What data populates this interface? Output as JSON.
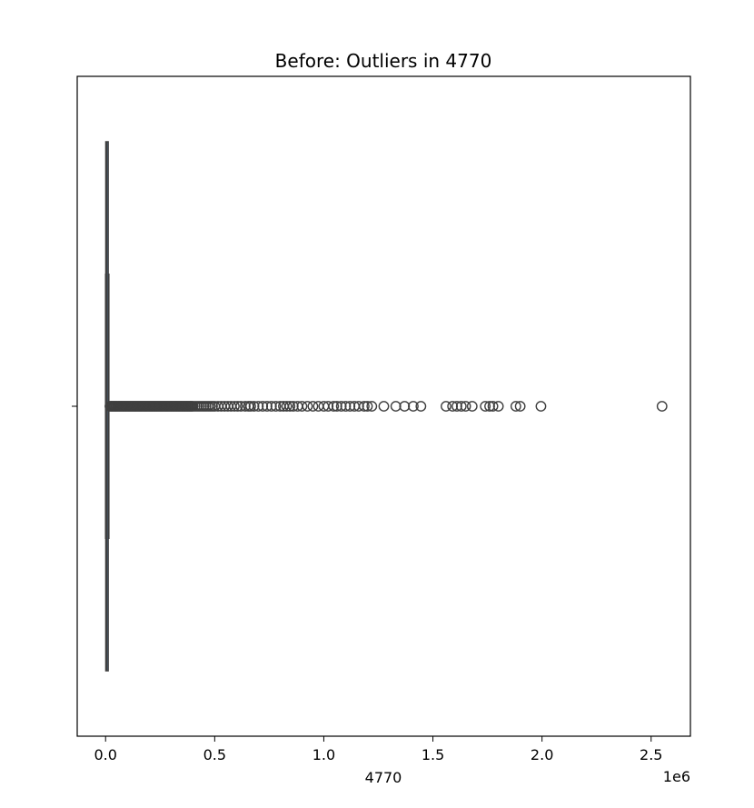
{
  "chart_data": {
    "type": "boxplot",
    "title": "Before: Outliers in 4770",
    "xlabel": "4770",
    "ylabel": "",
    "x_scale_label": "1e6",
    "xlim": [
      -130000,
      2680000
    ],
    "xticks": [
      0,
      500000,
      1000000,
      1500000,
      2000000,
      2500000
    ],
    "xtick_labels": [
      "0.0",
      "0.5",
      "1.0",
      "1.5",
      "2.0",
      "2.5"
    ],
    "box": {
      "min": 0,
      "q1": 1000,
      "median": 5000,
      "q3": 12000,
      "max": 15000
    },
    "outliers": [
      20000,
      25000,
      30000,
      35000,
      40000,
      45000,
      50000,
      55000,
      60000,
      65000,
      70000,
      75000,
      80000,
      85000,
      90000,
      95000,
      100000,
      105000,
      110000,
      115000,
      120000,
      125000,
      130000,
      135000,
      140000,
      145000,
      150000,
      155000,
      160000,
      165000,
      170000,
      175000,
      180000,
      185000,
      190000,
      195000,
      200000,
      205000,
      210000,
      215000,
      220000,
      225000,
      230000,
      235000,
      240000,
      245000,
      250000,
      255000,
      260000,
      265000,
      270000,
      275000,
      280000,
      285000,
      290000,
      295000,
      300000,
      305000,
      310000,
      315000,
      320000,
      325000,
      330000,
      335000,
      340000,
      345000,
      350000,
      355000,
      360000,
      365000,
      370000,
      375000,
      380000,
      385000,
      390000,
      395000,
      400000,
      410000,
      420000,
      430000,
      440000,
      450000,
      460000,
      470000,
      480000,
      490000,
      500000,
      515000,
      530000,
      545000,
      560000,
      575000,
      590000,
      605000,
      620000,
      640000,
      655000,
      665000,
      680000,
      700000,
      720000,
      740000,
      760000,
      780000,
      800000,
      815000,
      830000,
      845000,
      860000,
      880000,
      900000,
      925000,
      950000,
      975000,
      1000000,
      1020000,
      1045000,
      1060000,
      1080000,
      1100000,
      1120000,
      1140000,
      1160000,
      1185000,
      1200000,
      1220000,
      1275000,
      1330000,
      1370000,
      1410000,
      1445000,
      1560000,
      1590000,
      1610000,
      1630000,
      1650000,
      1680000,
      1740000,
      1760000,
      1775000,
      1800000,
      1880000,
      1900000,
      1995000,
      2550000
    ]
  }
}
